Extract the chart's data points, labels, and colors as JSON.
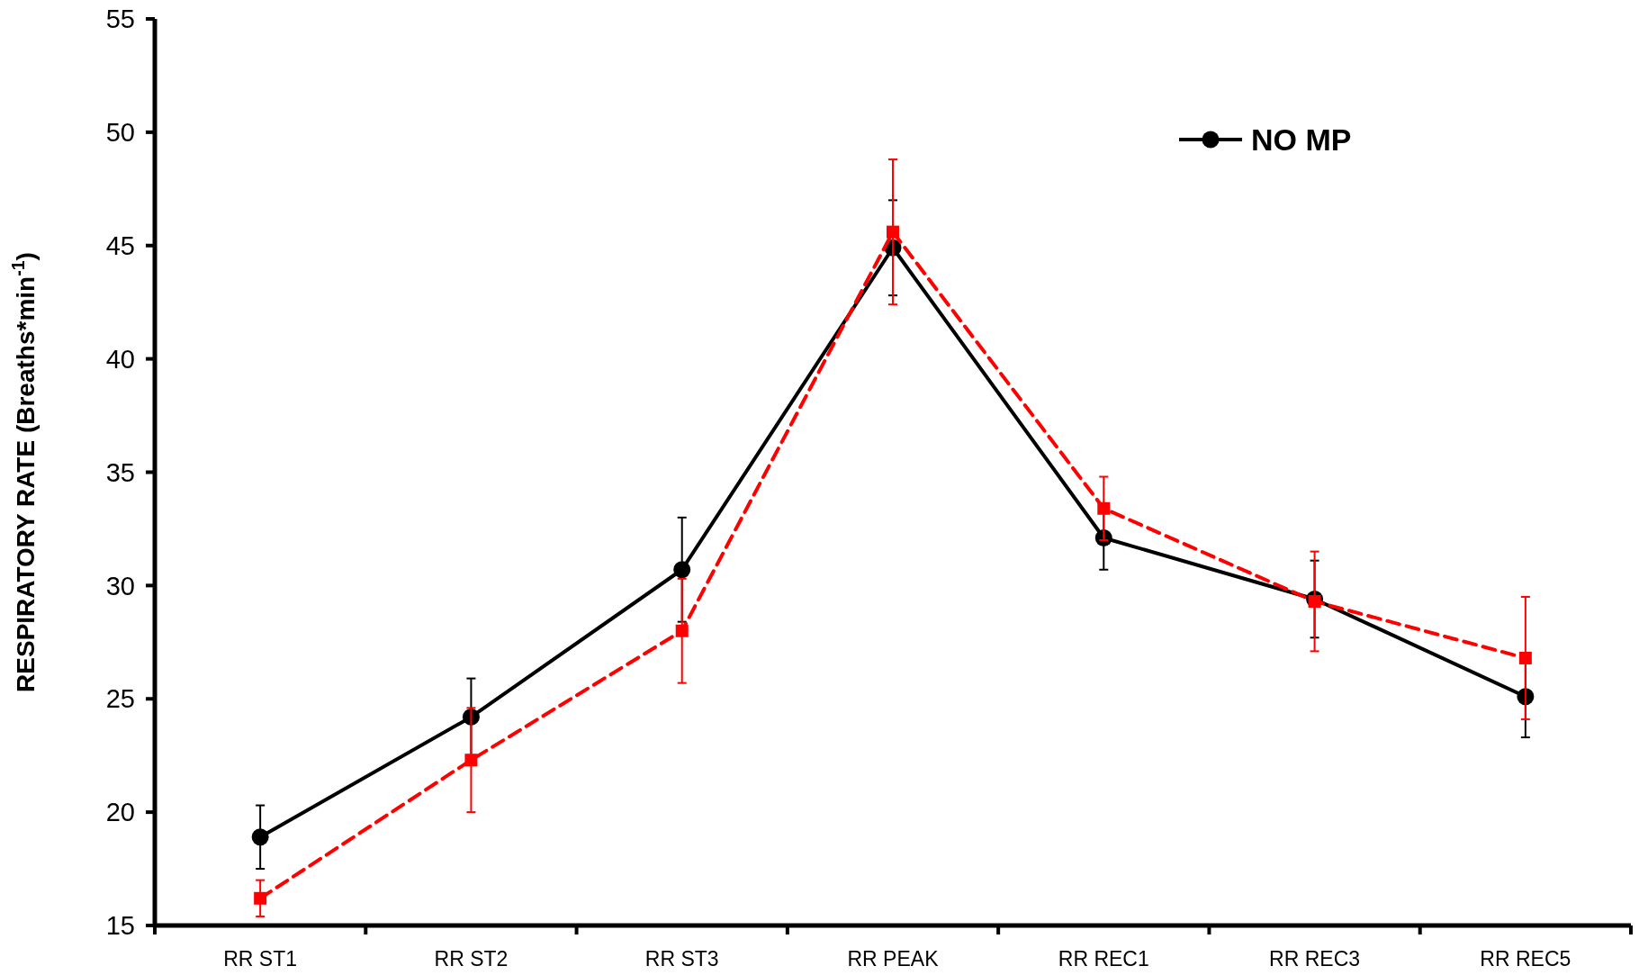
{
  "chart_data": {
    "type": "line",
    "ylabel": "RESPIRATORY RATE (Breaths*min$^{-1}$)",
    "categories": [
      "RR ST1",
      "RR ST2",
      "RR ST3",
      "RR PEAK",
      "RR REC1",
      "RR REC3",
      "RR REC5"
    ],
    "series": [
      {
        "name": "NO MP",
        "color": "#000000",
        "marker": "circle",
        "line_style": "solid",
        "values": [
          18.9,
          24.2,
          30.7,
          44.9,
          32.1,
          29.4,
          25.1
        ],
        "errors": [
          1.4,
          1.7,
          2.3,
          2.1,
          1.4,
          1.7,
          1.8
        ]
      },
      {
        "color": "#ff0000",
        "marker": "square",
        "line_style": "dashed",
        "values": [
          16.2,
          22.3,
          28.0,
          45.6,
          33.4,
          29.3,
          26.8
        ],
        "errors": [
          0.8,
          2.3,
          2.3,
          3.2,
          1.4,
          2.2,
          2.7
        ]
      }
    ],
    "ylim": [
      15,
      55
    ],
    "yticks": [
      15,
      20,
      25,
      30,
      35,
      40,
      45,
      50,
      55
    ],
    "grid": false,
    "legend": "top right"
  }
}
